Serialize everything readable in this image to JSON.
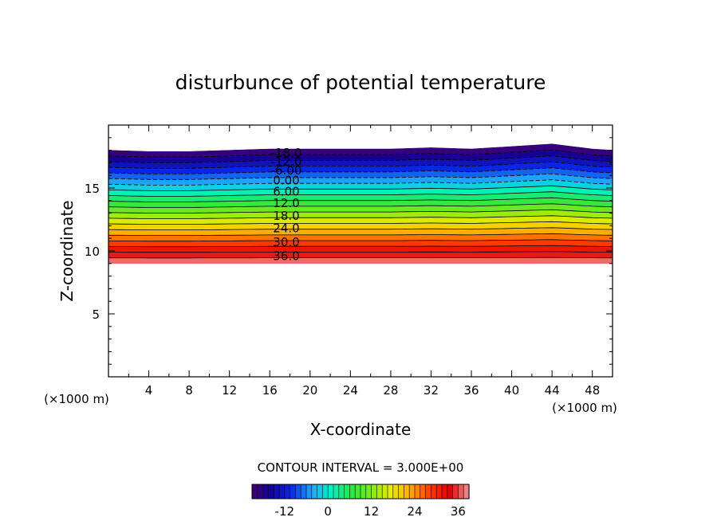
{
  "chart_data": {
    "type": "contour",
    "title": "disturbunce of potential temperature",
    "xlabel": "X-coordinate",
    "ylabel": "Z-coordinate",
    "x_unit": "(×1000 m)",
    "y_unit": "(×1000 m)",
    "xlim": [
      0,
      50
    ],
    "ylim": [
      0,
      20
    ],
    "x_ticks": [
      4,
      8,
      12,
      16,
      20,
      24,
      28,
      32,
      36,
      40,
      44,
      48
    ],
    "y_ticks": [
      5,
      10,
      15
    ],
    "contour_interval_label": "CONTOUR INTERVAL = 3.000E+00",
    "contour_interval": 3.0,
    "level_min": -21,
    "level_max": 39,
    "field_bottom_z": 9.0,
    "top_profile": {
      "x": [
        0,
        4,
        8,
        12,
        16,
        20,
        24,
        28,
        32,
        36,
        40,
        42,
        44,
        46,
        48,
        50
      ],
      "z": [
        18.0,
        17.9,
        17.9,
        18.0,
        18.1,
        18.1,
        18.1,
        18.1,
        18.2,
        18.1,
        18.3,
        18.4,
        18.5,
        18.3,
        18.1,
        18.0
      ]
    },
    "contour_labels": [
      {
        "text": "-18.0",
        "z": 17.8
      },
      {
        "text": "-12.0",
        "z": 17.1
      },
      {
        "text": "-6.00",
        "z": 16.4
      },
      {
        "text": "0.00",
        "z": 15.6
      },
      {
        "text": "6.00",
        "z": 14.7
      },
      {
        "text": "12.0",
        "z": 13.8
      },
      {
        "text": "18.0",
        "z": 12.8
      },
      {
        "text": "24.0",
        "z": 11.8
      },
      {
        "text": "30.0",
        "z": 10.7
      },
      {
        "text": "36.0",
        "z": 9.6
      }
    ],
    "colorbar": {
      "min": -21,
      "max": 39,
      "tick_labels": [
        "-12",
        "0",
        "12",
        "24",
        "36"
      ],
      "tick_values": [
        -12,
        0,
        12,
        24,
        36
      ]
    }
  }
}
